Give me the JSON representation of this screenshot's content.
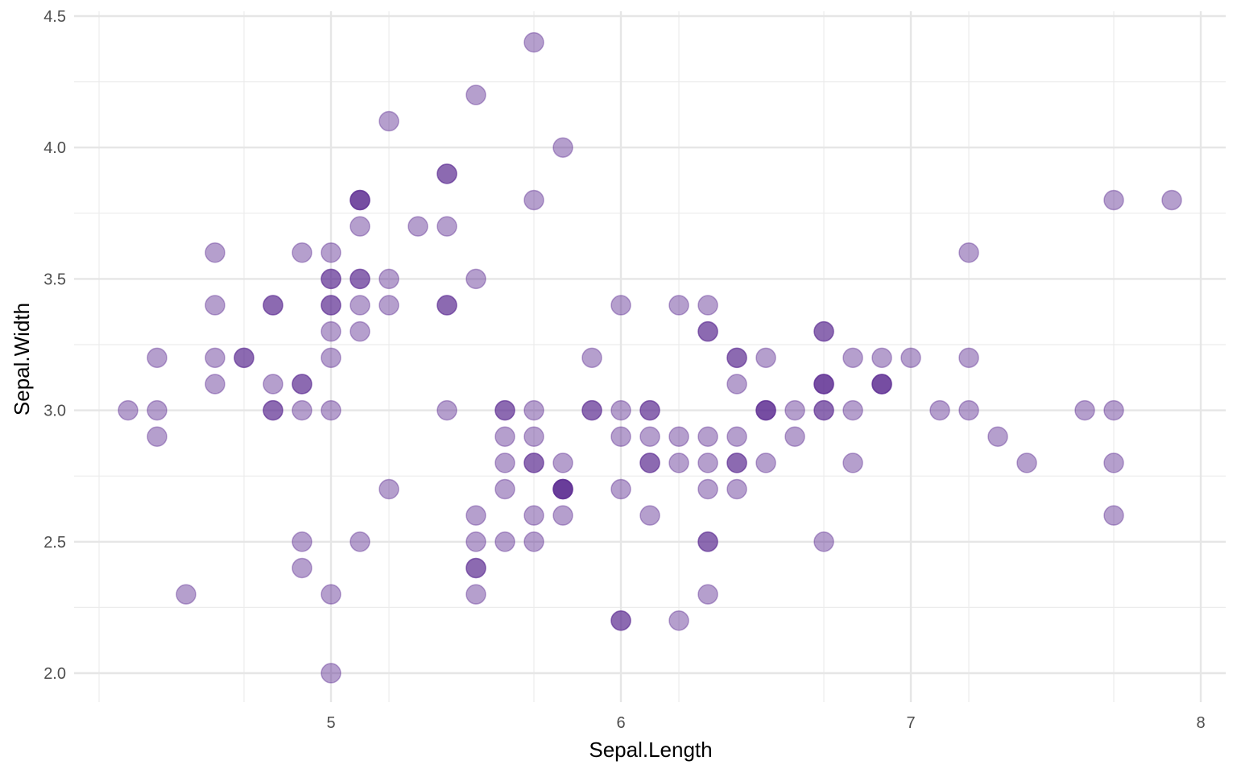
{
  "chart_data": {
    "type": "scatter",
    "title": "",
    "xlabel": "Sepal.Length",
    "ylabel": "Sepal.Width",
    "xlim": [
      4.2,
      8.0
    ],
    "ylim": [
      1.9,
      4.5
    ],
    "x_ticks": [
      5,
      6,
      7,
      8
    ],
    "x_tick_labels": [
      "5",
      "6",
      "7",
      "8"
    ],
    "y_ticks": [
      2.0,
      2.5,
      3.0,
      3.5,
      4.0,
      4.5
    ],
    "y_tick_labels": [
      "2.0",
      "2.5",
      "3.0",
      "3.5",
      "4.0",
      "4.5"
    ],
    "grid": true,
    "legend": "none",
    "point_color": "#5b2a91",
    "point_opacity": 0.45,
    "points": [
      {
        "x": 5.1,
        "y": 3.5
      },
      {
        "x": 4.9,
        "y": 3.0
      },
      {
        "x": 4.7,
        "y": 3.2
      },
      {
        "x": 4.6,
        "y": 3.1
      },
      {
        "x": 5.0,
        "y": 3.6
      },
      {
        "x": 5.4,
        "y": 3.9
      },
      {
        "x": 4.6,
        "y": 3.4
      },
      {
        "x": 5.0,
        "y": 3.4
      },
      {
        "x": 4.4,
        "y": 2.9
      },
      {
        "x": 4.9,
        "y": 3.1
      },
      {
        "x": 5.4,
        "y": 3.7
      },
      {
        "x": 4.8,
        "y": 3.4
      },
      {
        "x": 4.8,
        "y": 3.0
      },
      {
        "x": 4.3,
        "y": 3.0
      },
      {
        "x": 5.8,
        "y": 4.0
      },
      {
        "x": 5.7,
        "y": 4.4
      },
      {
        "x": 5.4,
        "y": 3.9
      },
      {
        "x": 5.1,
        "y": 3.5
      },
      {
        "x": 5.7,
        "y": 3.8
      },
      {
        "x": 5.1,
        "y": 3.8
      },
      {
        "x": 5.4,
        "y": 3.4
      },
      {
        "x": 5.1,
        "y": 3.7
      },
      {
        "x": 4.6,
        "y": 3.6
      },
      {
        "x": 5.1,
        "y": 3.3
      },
      {
        "x": 4.8,
        "y": 3.4
      },
      {
        "x": 5.0,
        "y": 3.0
      },
      {
        "x": 5.0,
        "y": 3.4
      },
      {
        "x": 5.2,
        "y": 3.5
      },
      {
        "x": 5.2,
        "y": 3.4
      },
      {
        "x": 4.7,
        "y": 3.2
      },
      {
        "x": 4.8,
        "y": 3.1
      },
      {
        "x": 5.4,
        "y": 3.4
      },
      {
        "x": 5.2,
        "y": 4.1
      },
      {
        "x": 5.5,
        "y": 4.2
      },
      {
        "x": 4.9,
        "y": 3.1
      },
      {
        "x": 5.0,
        "y": 3.2
      },
      {
        "x": 5.5,
        "y": 3.5
      },
      {
        "x": 4.9,
        "y": 3.6
      },
      {
        "x": 4.4,
        "y": 3.0
      },
      {
        "x": 5.1,
        "y": 3.4
      },
      {
        "x": 5.0,
        "y": 3.5
      },
      {
        "x": 4.5,
        "y": 2.3
      },
      {
        "x": 4.4,
        "y": 3.2
      },
      {
        "x": 5.0,
        "y": 3.5
      },
      {
        "x": 5.1,
        "y": 3.8
      },
      {
        "x": 4.8,
        "y": 3.0
      },
      {
        "x": 5.1,
        "y": 3.8
      },
      {
        "x": 4.6,
        "y": 3.2
      },
      {
        "x": 5.3,
        "y": 3.7
      },
      {
        "x": 5.0,
        "y": 3.3
      },
      {
        "x": 7.0,
        "y": 3.2
      },
      {
        "x": 6.4,
        "y": 3.2
      },
      {
        "x": 6.9,
        "y": 3.1
      },
      {
        "x": 5.5,
        "y": 2.3
      },
      {
        "x": 6.5,
        "y": 2.8
      },
      {
        "x": 5.7,
        "y": 2.8
      },
      {
        "x": 6.3,
        "y": 3.3
      },
      {
        "x": 4.9,
        "y": 2.4
      },
      {
        "x": 6.6,
        "y": 2.9
      },
      {
        "x": 5.2,
        "y": 2.7
      },
      {
        "x": 5.0,
        "y": 2.0
      },
      {
        "x": 5.9,
        "y": 3.0
      },
      {
        "x": 6.0,
        "y": 2.2
      },
      {
        "x": 6.1,
        "y": 2.9
      },
      {
        "x": 5.6,
        "y": 2.9
      },
      {
        "x": 6.7,
        "y": 3.1
      },
      {
        "x": 5.6,
        "y": 3.0
      },
      {
        "x": 5.8,
        "y": 2.7
      },
      {
        "x": 6.2,
        "y": 2.2
      },
      {
        "x": 5.6,
        "y": 2.5
      },
      {
        "x": 5.9,
        "y": 3.2
      },
      {
        "x": 6.1,
        "y": 2.8
      },
      {
        "x": 6.3,
        "y": 2.5
      },
      {
        "x": 6.1,
        "y": 2.8
      },
      {
        "x": 6.4,
        "y": 2.9
      },
      {
        "x": 6.6,
        "y": 3.0
      },
      {
        "x": 6.8,
        "y": 2.8
      },
      {
        "x": 6.7,
        "y": 3.0
      },
      {
        "x": 6.0,
        "y": 2.9
      },
      {
        "x": 5.7,
        "y": 2.6
      },
      {
        "x": 5.5,
        "y": 2.4
      },
      {
        "x": 5.5,
        "y": 2.4
      },
      {
        "x": 5.8,
        "y": 2.7
      },
      {
        "x": 6.0,
        "y": 2.7
      },
      {
        "x": 5.4,
        "y": 3.0
      },
      {
        "x": 6.0,
        "y": 3.4
      },
      {
        "x": 6.7,
        "y": 3.1
      },
      {
        "x": 6.3,
        "y": 2.3
      },
      {
        "x": 5.6,
        "y": 3.0
      },
      {
        "x": 5.5,
        "y": 2.5
      },
      {
        "x": 5.5,
        "y": 2.6
      },
      {
        "x": 6.1,
        "y": 3.0
      },
      {
        "x": 5.8,
        "y": 2.6
      },
      {
        "x": 5.0,
        "y": 2.3
      },
      {
        "x": 5.6,
        "y": 2.7
      },
      {
        "x": 5.7,
        "y": 3.0
      },
      {
        "x": 5.7,
        "y": 2.9
      },
      {
        "x": 6.2,
        "y": 2.9
      },
      {
        "x": 5.1,
        "y": 2.5
      },
      {
        "x": 5.7,
        "y": 2.8
      },
      {
        "x": 6.3,
        "y": 3.3
      },
      {
        "x": 5.8,
        "y": 2.7
      },
      {
        "x": 7.1,
        "y": 3.0
      },
      {
        "x": 6.3,
        "y": 2.9
      },
      {
        "x": 6.5,
        "y": 3.0
      },
      {
        "x": 7.6,
        "y": 3.0
      },
      {
        "x": 4.9,
        "y": 2.5
      },
      {
        "x": 7.3,
        "y": 2.9
      },
      {
        "x": 6.7,
        "y": 2.5
      },
      {
        "x": 7.2,
        "y": 3.6
      },
      {
        "x": 6.5,
        "y": 3.2
      },
      {
        "x": 6.4,
        "y": 2.7
      },
      {
        "x": 6.8,
        "y": 3.0
      },
      {
        "x": 5.7,
        "y": 2.5
      },
      {
        "x": 5.8,
        "y": 2.8
      },
      {
        "x": 6.4,
        "y": 3.2
      },
      {
        "x": 6.5,
        "y": 3.0
      },
      {
        "x": 7.7,
        "y": 3.8
      },
      {
        "x": 7.7,
        "y": 2.6
      },
      {
        "x": 6.0,
        "y": 2.2
      },
      {
        "x": 6.9,
        "y": 3.2
      },
      {
        "x": 5.6,
        "y": 2.8
      },
      {
        "x": 7.7,
        "y": 2.8
      },
      {
        "x": 6.3,
        "y": 2.7
      },
      {
        "x": 6.7,
        "y": 3.3
      },
      {
        "x": 7.2,
        "y": 3.2
      },
      {
        "x": 6.2,
        "y": 2.8
      },
      {
        "x": 6.1,
        "y": 3.0
      },
      {
        "x": 6.4,
        "y": 2.8
      },
      {
        "x": 7.2,
        "y": 3.0
      },
      {
        "x": 7.4,
        "y": 2.8
      },
      {
        "x": 7.9,
        "y": 3.8
      },
      {
        "x": 6.4,
        "y": 2.8
      },
      {
        "x": 6.3,
        "y": 2.8
      },
      {
        "x": 6.1,
        "y": 2.6
      },
      {
        "x": 7.7,
        "y": 3.0
      },
      {
        "x": 6.3,
        "y": 3.4
      },
      {
        "x": 6.4,
        "y": 3.1
      },
      {
        "x": 6.0,
        "y": 3.0
      },
      {
        "x": 6.9,
        "y": 3.1
      },
      {
        "x": 6.7,
        "y": 3.1
      },
      {
        "x": 6.9,
        "y": 3.1
      },
      {
        "x": 5.8,
        "y": 2.7
      },
      {
        "x": 6.8,
        "y": 3.2
      },
      {
        "x": 6.7,
        "y": 3.3
      },
      {
        "x": 6.7,
        "y": 3.0
      },
      {
        "x": 6.3,
        "y": 2.5
      },
      {
        "x": 6.5,
        "y": 3.0
      },
      {
        "x": 6.2,
        "y": 3.4
      },
      {
        "x": 5.9,
        "y": 3.0
      }
    ]
  }
}
